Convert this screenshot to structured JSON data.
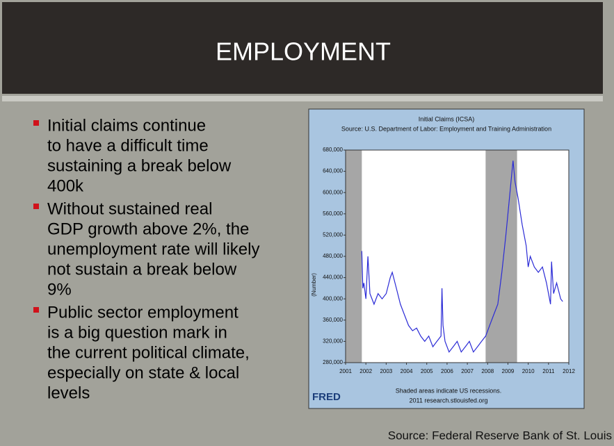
{
  "slide": {
    "title": "EMPLOYMENT",
    "bullets": [
      [
        "Initial claims continue",
        "to have a difficult time",
        "sustaining a break below",
        "400k"
      ],
      [
        "Without sustained real",
        "GDP growth above 2%, the",
        "unemployment rate will likely",
        "not sustain a break below",
        "9%"
      ],
      [
        "Public sector employment",
        "is a big question mark in",
        "the current political climate,",
        "especially on state & local",
        "levels"
      ]
    ],
    "source": "Source: Federal Reserve Bank of St. Louis"
  },
  "chart_data": {
    "type": "line",
    "title": "Initial Claims (ICSA)",
    "subtitle": "Source: U.S. Department of Labor: Employment and Training Administration",
    "y_label": "(Number)",
    "note": "Shaded areas indicate US recessions.",
    "credit": "2011 research.stlouisfed.org",
    "logo": "FRED",
    "x": [
      2001.8,
      2001.85,
      2001.9,
      2002.0,
      2002.1,
      2002.2,
      2002.4,
      2002.6,
      2002.8,
      2003.0,
      2003.2,
      2003.3,
      2003.5,
      2003.7,
      2003.9,
      2004.1,
      2004.3,
      2004.5,
      2004.7,
      2004.9,
      2005.1,
      2005.3,
      2005.5,
      2005.7,
      2005.75,
      2005.8,
      2005.9,
      2006.1,
      2006.3,
      2006.5,
      2006.7,
      2006.9,
      2007.1,
      2007.3,
      2007.5,
      2007.7,
      2007.9,
      2008.1,
      2008.3,
      2008.5,
      2008.7,
      2008.9,
      2009.1,
      2009.2,
      2009.25,
      2009.35,
      2009.5,
      2009.7,
      2009.9,
      2010.0,
      2010.1,
      2010.3,
      2010.5,
      2010.7,
      2010.9,
      2011.0,
      2011.1,
      2011.15,
      2011.25,
      2011.4,
      2011.6,
      2011.7
    ],
    "series": [
      {
        "name": "ICSA",
        "color": "#2b2bd6",
        "values": [
          490000,
          420000,
          430000,
          400000,
          480000,
          410000,
          390000,
          410000,
          400000,
          410000,
          440000,
          450000,
          420000,
          390000,
          370000,
          350000,
          340000,
          345000,
          330000,
          320000,
          330000,
          310000,
          320000,
          330000,
          420000,
          350000,
          320000,
          300000,
          310000,
          320000,
          300000,
          310000,
          320000,
          300000,
          310000,
          320000,
          330000,
          350000,
          370000,
          390000,
          450000,
          520000,
          600000,
          640000,
          660000,
          620000,
          590000,
          540000,
          500000,
          460000,
          480000,
          460000,
          450000,
          460000,
          430000,
          410000,
          390000,
          470000,
          410000,
          430000,
          400000,
          395000
        ]
      }
    ],
    "recessions": [
      {
        "start": 2001.0,
        "end": 2001.8
      },
      {
        "start": 2007.9,
        "end": 2009.45
      }
    ],
    "recession_color": "#a6a6a6",
    "xlim": [
      2001,
      2012
    ],
    "xticks": [
      2001,
      2002,
      2003,
      2004,
      2005,
      2006,
      2007,
      2008,
      2009,
      2010,
      2011,
      2012
    ],
    "ylim": [
      280000,
      680000
    ],
    "yticks": [
      {
        "value": 280000,
        "label": "280,000"
      },
      {
        "value": 320000,
        "label": "320,000"
      },
      {
        "value": 360000,
        "label": "360,000"
      },
      {
        "value": 400000,
        "label": "400,000"
      },
      {
        "value": 440000,
        "label": "440,000"
      },
      {
        "value": 480000,
        "label": "480,000"
      },
      {
        "value": 520000,
        "label": "520,000"
      },
      {
        "value": 560000,
        "label": "560,000"
      },
      {
        "value": 600000,
        "label": "600,000"
      },
      {
        "value": 640000,
        "label": "640,000"
      },
      {
        "value": 680000,
        "label": "680,000"
      }
    ]
  }
}
